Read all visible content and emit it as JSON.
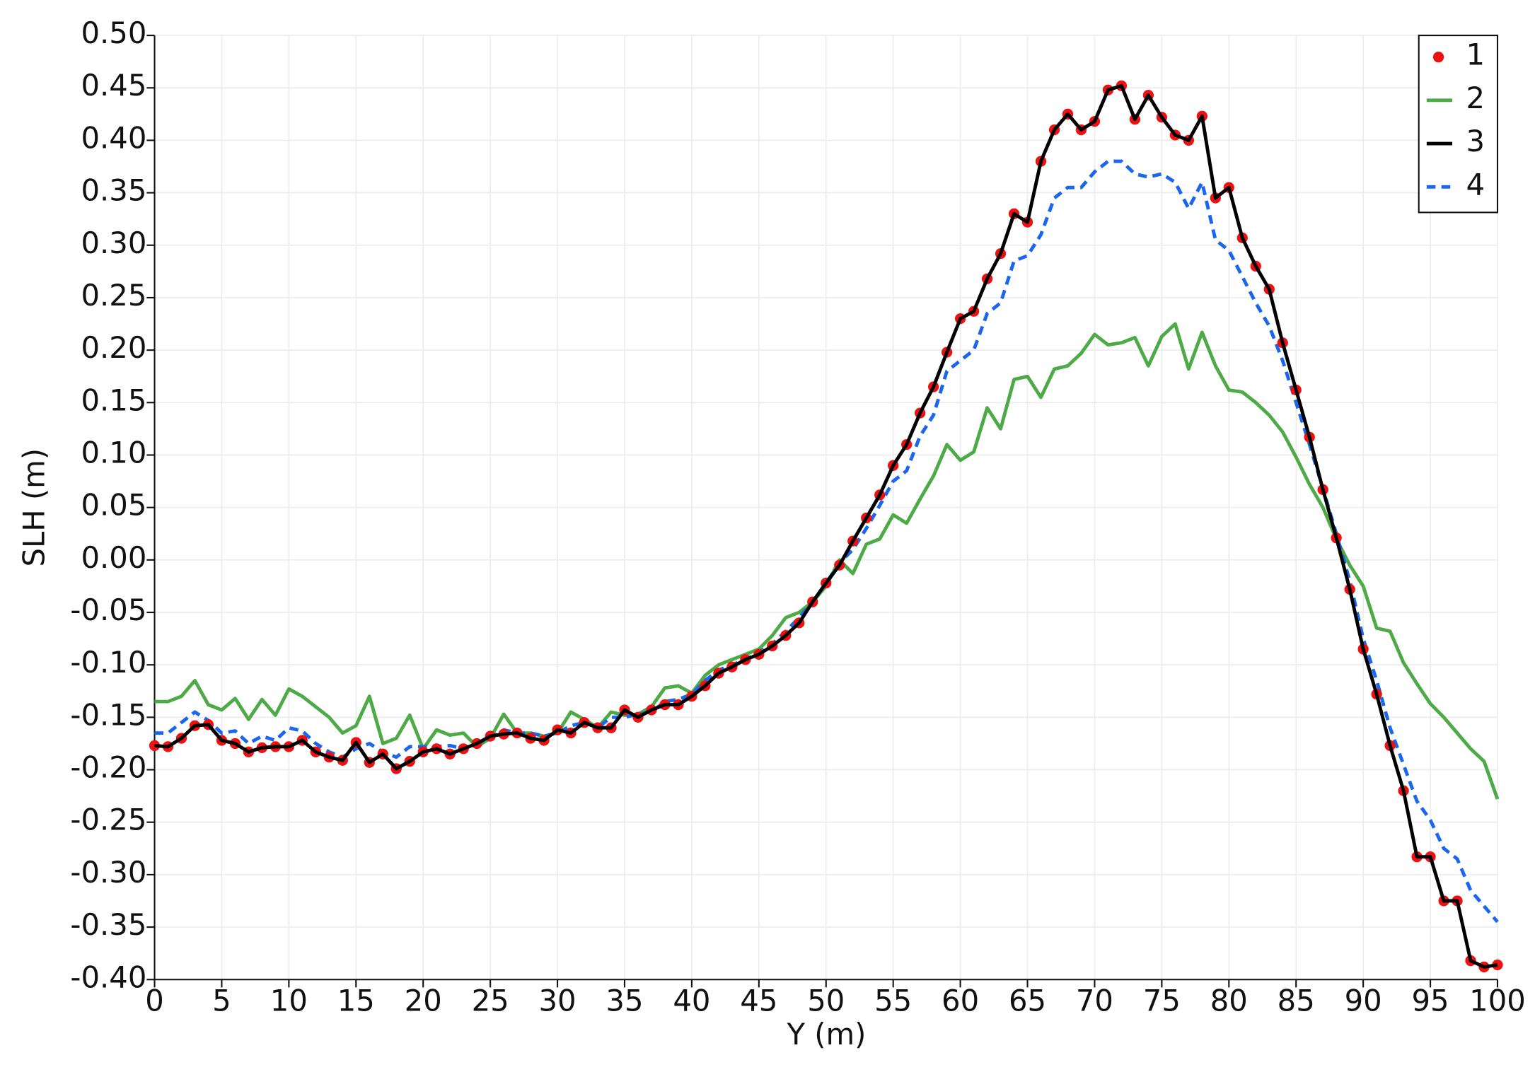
{
  "chart_data": {
    "type": "line",
    "xlabel": "Y (m)",
    "ylabel": "SLH (m)",
    "x": [
      0,
      1,
      2,
      3,
      4,
      5,
      6,
      7,
      8,
      9,
      10,
      11,
      12,
      13,
      14,
      15,
      16,
      17,
      18,
      19,
      20,
      21,
      22,
      23,
      24,
      25,
      26,
      27,
      28,
      29,
      30,
      31,
      32,
      33,
      34,
      35,
      36,
      37,
      38,
      39,
      40,
      41,
      42,
      43,
      44,
      45,
      46,
      47,
      48,
      49,
      50,
      51,
      52,
      53,
      54,
      55,
      56,
      57,
      58,
      59,
      60,
      61,
      62,
      63,
      64,
      65,
      66,
      67,
      68,
      69,
      70,
      71,
      72,
      73,
      74,
      75,
      76,
      77,
      78,
      79,
      80,
      81,
      82,
      83,
      84,
      85,
      86,
      87,
      88,
      89,
      90,
      91,
      92,
      93,
      94,
      95,
      96,
      97,
      98,
      99,
      100
    ],
    "xlim": [
      0,
      100
    ],
    "xticks": [
      0,
      5,
      10,
      15,
      20,
      25,
      30,
      35,
      40,
      45,
      50,
      55,
      60,
      65,
      70,
      75,
      80,
      85,
      90,
      95,
      100
    ],
    "ylim": [
      -0.4,
      0.5
    ],
    "yticks": [
      {
        "value": 0.5,
        "label": "0.50"
      },
      {
        "value": 0.45,
        "label": "0.45"
      },
      {
        "value": 0.4,
        "label": "0.40"
      },
      {
        "value": 0.35,
        "label": "0.35"
      },
      {
        "value": 0.3,
        "label": "0.30"
      },
      {
        "value": 0.25,
        "label": "0.25"
      },
      {
        "value": 0.2,
        "label": "0.20"
      },
      {
        "value": 0.15,
        "label": "0.15"
      },
      {
        "value": 0.1,
        "label": "0.10"
      },
      {
        "value": 0.05,
        "label": "0.05"
      },
      {
        "value": 0,
        "label": "0.00"
      },
      {
        "value": -0.05,
        "label": "-0.05"
      },
      {
        "value": -0.1,
        "label": "-0.10"
      },
      {
        "value": -0.15,
        "label": "-0.15"
      },
      {
        "value": -0.2,
        "label": "-0.20"
      },
      {
        "value": -0.25,
        "label": "-0.25"
      },
      {
        "value": -0.3,
        "label": "-0.30"
      },
      {
        "value": -0.35,
        "label": "-0.35"
      },
      {
        "value": -0.4,
        "label": "-0.40"
      }
    ],
    "grid": true,
    "legend": "top-right",
    "series": [
      {
        "name": "1",
        "color": "#ee1111",
        "mode": "markers",
        "values": [
          -0.177,
          -0.178,
          -0.17,
          -0.158,
          -0.157,
          -0.172,
          -0.175,
          -0.183,
          -0.179,
          -0.178,
          -0.178,
          -0.172,
          -0.183,
          -0.188,
          -0.191,
          -0.174,
          -0.193,
          -0.185,
          -0.199,
          -0.192,
          -0.183,
          -0.18,
          -0.185,
          -0.18,
          -0.175,
          -0.168,
          -0.166,
          -0.165,
          -0.17,
          -0.172,
          -0.162,
          -0.165,
          -0.155,
          -0.16,
          -0.16,
          -0.143,
          -0.15,
          -0.143,
          -0.138,
          -0.138,
          -0.13,
          -0.12,
          -0.108,
          -0.102,
          -0.095,
          -0.09,
          -0.082,
          -0.072,
          -0.06,
          -0.04,
          -0.022,
          -0.005,
          0.018,
          0.04,
          0.062,
          0.09,
          0.11,
          0.14,
          0.165,
          0.198,
          0.23,
          0.237,
          0.268,
          0.292,
          0.33,
          0.322,
          0.38,
          0.41,
          0.425,
          0.41,
          0.418,
          0.448,
          0.452,
          0.42,
          0.443,
          0.422,
          0.405,
          0.4,
          0.423,
          0.345,
          0.355,
          0.307,
          0.28,
          0.258,
          0.207,
          0.162,
          0.117,
          0.067,
          0.021,
          -0.028,
          -0.085,
          -0.128,
          -0.177,
          -0.22,
          -0.283,
          -0.283,
          -0.325,
          -0.325,
          -0.382,
          -0.388,
          -0.386
        ]
      },
      {
        "name": "2",
        "color": "#4daa47",
        "mode": "line",
        "values": [
          -0.135,
          -0.135,
          -0.13,
          -0.115,
          -0.138,
          -0.143,
          -0.132,
          -0.152,
          -0.133,
          -0.148,
          -0.123,
          -0.13,
          -0.14,
          -0.15,
          -0.165,
          -0.158,
          -0.13,
          -0.175,
          -0.17,
          -0.148,
          -0.18,
          -0.162,
          -0.167,
          -0.165,
          -0.178,
          -0.17,
          -0.147,
          -0.165,
          -0.165,
          -0.168,
          -0.165,
          -0.145,
          -0.152,
          -0.16,
          -0.145,
          -0.148,
          -0.147,
          -0.14,
          -0.122,
          -0.12,
          -0.127,
          -0.11,
          -0.1,
          -0.095,
          -0.09,
          -0.085,
          -0.072,
          -0.055,
          -0.05,
          -0.04,
          -0.025,
          0.0,
          -0.013,
          0.015,
          0.02,
          0.043,
          0.035,
          0.058,
          0.08,
          0.11,
          0.095,
          0.103,
          0.145,
          0.125,
          0.172,
          0.175,
          0.155,
          0.182,
          0.185,
          0.197,
          0.215,
          0.205,
          0.207,
          0.212,
          0.185,
          0.213,
          0.225,
          0.182,
          0.217,
          0.185,
          0.162,
          0.16,
          0.15,
          0.138,
          0.122,
          0.098,
          0.072,
          0.05,
          0.02,
          -0.005,
          -0.025,
          -0.065,
          -0.068,
          -0.098,
          -0.118,
          -0.137,
          -0.15,
          -0.165,
          -0.18,
          -0.192,
          -0.228
        ]
      },
      {
        "name": "3",
        "color": "#000000",
        "mode": "line",
        "values": [
          -0.177,
          -0.178,
          -0.17,
          -0.158,
          -0.157,
          -0.172,
          -0.175,
          -0.183,
          -0.179,
          -0.178,
          -0.178,
          -0.172,
          -0.183,
          -0.188,
          -0.191,
          -0.174,
          -0.193,
          -0.185,
          -0.199,
          -0.192,
          -0.183,
          -0.18,
          -0.185,
          -0.18,
          -0.175,
          -0.168,
          -0.166,
          -0.165,
          -0.17,
          -0.172,
          -0.162,
          -0.165,
          -0.155,
          -0.16,
          -0.16,
          -0.143,
          -0.15,
          -0.143,
          -0.138,
          -0.138,
          -0.13,
          -0.12,
          -0.108,
          -0.102,
          -0.095,
          -0.09,
          -0.082,
          -0.072,
          -0.06,
          -0.04,
          -0.022,
          -0.005,
          0.018,
          0.04,
          0.062,
          0.09,
          0.11,
          0.14,
          0.165,
          0.198,
          0.23,
          0.237,
          0.268,
          0.292,
          0.33,
          0.322,
          0.38,
          0.41,
          0.425,
          0.41,
          0.418,
          0.448,
          0.452,
          0.42,
          0.443,
          0.422,
          0.405,
          0.4,
          0.423,
          0.345,
          0.355,
          0.307,
          0.28,
          0.258,
          0.207,
          0.162,
          0.117,
          0.067,
          0.021,
          -0.028,
          -0.085,
          -0.128,
          -0.177,
          -0.22,
          -0.283,
          -0.283,
          -0.325,
          -0.325,
          -0.382,
          -0.388,
          -0.386
        ]
      },
      {
        "name": "4",
        "color": "#1a66ee",
        "mode": "line",
        "dash": true,
        "values": [
          -0.165,
          -0.165,
          -0.155,
          -0.145,
          -0.153,
          -0.165,
          -0.163,
          -0.175,
          -0.168,
          -0.172,
          -0.16,
          -0.163,
          -0.175,
          -0.183,
          -0.188,
          -0.18,
          -0.175,
          -0.183,
          -0.188,
          -0.178,
          -0.178,
          -0.178,
          -0.177,
          -0.18,
          -0.175,
          -0.17,
          -0.162,
          -0.165,
          -0.165,
          -0.168,
          -0.165,
          -0.158,
          -0.155,
          -0.16,
          -0.15,
          -0.15,
          -0.147,
          -0.145,
          -0.135,
          -0.133,
          -0.128,
          -0.115,
          -0.105,
          -0.1,
          -0.095,
          -0.088,
          -0.08,
          -0.068,
          -0.055,
          -0.04,
          -0.022,
          -0.003,
          0.01,
          0.03,
          0.052,
          0.075,
          0.085,
          0.118,
          0.138,
          0.18,
          0.19,
          0.2,
          0.235,
          0.245,
          0.285,
          0.29,
          0.31,
          0.345,
          0.355,
          0.355,
          0.37,
          0.38,
          0.38,
          0.368,
          0.365,
          0.368,
          0.36,
          0.335,
          0.36,
          0.305,
          0.295,
          0.27,
          0.245,
          0.223,
          0.19,
          0.15,
          0.11,
          0.068,
          0.025,
          -0.02,
          -0.075,
          -0.115,
          -0.16,
          -0.195,
          -0.23,
          -0.248,
          -0.275,
          -0.285,
          -0.315,
          -0.33,
          -0.345
        ]
      }
    ]
  }
}
